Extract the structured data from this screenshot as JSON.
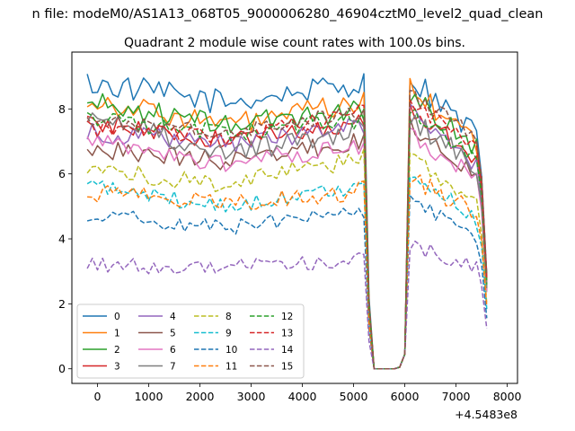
{
  "chart_data": {
    "type": "line",
    "suptitle": "n file: modeM0/AS1A13_068T05_9000006280_46904cztM0_level2_quad_clean",
    "title": "Quadrant 2 module wise count rates with 100.0s bins.",
    "xlabel": "",
    "ylabel": "",
    "x_offset_label": "+4.5483e8",
    "xlim": [
      -500,
      8200
    ],
    "ylim": [
      -0.45,
      9.75
    ],
    "xticks": [
      0,
      1000,
      2000,
      3000,
      4000,
      5000,
      6000,
      7000,
      8000
    ],
    "yticks": [
      0,
      2,
      4,
      6,
      8
    ],
    "grid": false,
    "legend_position": "lower-left",
    "x_start": -200,
    "x_step": 100,
    "num_points": 79,
    "shape": {
      "gap": [
        [
          5300,
          2.0
        ],
        [
          5400,
          0.0
        ],
        [
          5500,
          0.0
        ],
        [
          5600,
          0.0
        ],
        [
          5700,
          0.0
        ],
        [
          5800,
          0.0
        ],
        [
          5900,
          0.05
        ],
        [
          6000,
          0.45
        ]
      ],
      "end": [
        [
          7500,
          5.0
        ],
        [
          7600,
          2.6
        ]
      ]
    },
    "series": [
      {
        "name": "0",
        "color": "#1f77b4",
        "dash": "solid",
        "level_start": 8.8,
        "level_mid": 8.2,
        "level_end": 8.8,
        "after_gap": 9.0,
        "final": 7.2,
        "wiggle": 0.4
      },
      {
        "name": "1",
        "color": "#ff7f0e",
        "dash": "solid",
        "level_start": 8.3,
        "level_mid": 7.5,
        "level_end": 8.2,
        "after_gap": 8.6,
        "final": 7.0,
        "wiggle": 0.35
      },
      {
        "name": "2",
        "color": "#2ca02c",
        "dash": "solid",
        "level_start": 8.2,
        "level_mid": 7.5,
        "level_end": 8.0,
        "after_gap": 8.4,
        "final": 6.8,
        "wiggle": 0.35
      },
      {
        "name": "3",
        "color": "#d62728",
        "dash": "solid",
        "level_start": 7.6,
        "level_mid": 7.0,
        "level_end": 7.6,
        "after_gap": 8.0,
        "final": 6.5,
        "wiggle": 0.3
      },
      {
        "name": "4",
        "color": "#9467bd",
        "dash": "solid",
        "level_start": 7.3,
        "level_mid": 6.9,
        "level_end": 7.5,
        "after_gap": 7.9,
        "final": 6.3,
        "wiggle": 0.3
      },
      {
        "name": "5",
        "color": "#8c564b",
        "dash": "solid",
        "level_start": 6.8,
        "level_mid": 6.4,
        "level_end": 7.0,
        "after_gap": 7.5,
        "final": 6.0,
        "wiggle": 0.3
      },
      {
        "name": "6",
        "color": "#e377c2",
        "dash": "solid",
        "level_start": 7.0,
        "level_mid": 6.3,
        "level_end": 6.9,
        "after_gap": 7.2,
        "final": 5.9,
        "wiggle": 0.3
      },
      {
        "name": "7",
        "color": "#7f7f7f",
        "dash": "solid",
        "level_start": 7.9,
        "level_mid": 6.6,
        "level_end": 7.4,
        "after_gap": 7.7,
        "final": 6.2,
        "wiggle": 0.35
      },
      {
        "name": "8",
        "color": "#bcbd22",
        "dash": "dashed",
        "level_start": 6.1,
        "level_mid": 5.7,
        "level_end": 6.5,
        "after_gap": 6.6,
        "final": 5.0,
        "wiggle": 0.3
      },
      {
        "name": "9",
        "color": "#17becf",
        "dash": "dashed",
        "level_start": 5.6,
        "level_mid": 5.0,
        "level_end": 5.6,
        "after_gap": 6.1,
        "final": 4.6,
        "wiggle": 0.25
      },
      {
        "name": "10",
        "color": "#1f77b4",
        "dash": "dashed",
        "level_start": 4.8,
        "level_mid": 4.3,
        "level_end": 4.9,
        "after_gap": 5.3,
        "final": 3.9,
        "wiggle": 0.25
      },
      {
        "name": "11",
        "color": "#ff7f0e",
        "dash": "dashed",
        "level_start": 5.4,
        "level_mid": 5.1,
        "level_end": 5.5,
        "after_gap": 5.9,
        "final": 4.8,
        "wiggle": 0.3
      },
      {
        "name": "12",
        "color": "#2ca02c",
        "dash": "dashed",
        "level_start": 7.8,
        "level_mid": 7.2,
        "level_end": 7.7,
        "after_gap": 8.1,
        "final": 6.5,
        "wiggle": 0.3
      },
      {
        "name": "13",
        "color": "#d62728",
        "dash": "dashed",
        "level_start": 7.4,
        "level_mid": 7.1,
        "level_end": 7.9,
        "after_gap": 8.2,
        "final": 6.9,
        "wiggle": 0.25
      },
      {
        "name": "14",
        "color": "#9467bd",
        "dash": "dashed",
        "level_start": 3.2,
        "level_mid": 3.1,
        "level_end": 3.4,
        "after_gap": 3.8,
        "final": 3.1,
        "wiggle": 0.25
      },
      {
        "name": "15",
        "color": "#8c564b",
        "dash": "dashed",
        "level_start": 7.7,
        "level_mid": 7.3,
        "level_end": 7.9,
        "after_gap": 8.4,
        "final": 7.2,
        "wiggle": 0.25
      }
    ]
  }
}
